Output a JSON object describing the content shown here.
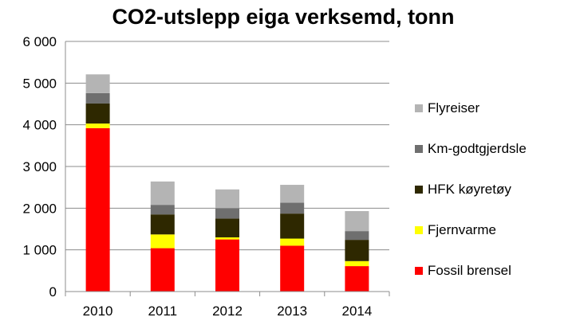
{
  "chart_data": {
    "type": "bar",
    "stacked": true,
    "title": "CO2-utslepp eiga verksemd, tonn",
    "xlabel": "",
    "ylabel": "",
    "categories": [
      "2010",
      "2011",
      "2012",
      "2013",
      "2014"
    ],
    "ylim": [
      0,
      6000
    ],
    "yticks": [
      0,
      1000,
      2000,
      3000,
      4000,
      5000,
      6000
    ],
    "ytick_labels": [
      "0",
      "1 000",
      "2 000",
      "3 000",
      "4 000",
      "5 000",
      "6 000"
    ],
    "grid": true,
    "legend_position": "right",
    "series": [
      {
        "name": "Fossil brensel",
        "color": "#ff0000",
        "values": [
          3920,
          1040,
          1250,
          1100,
          610
        ]
      },
      {
        "name": "Fjernvarme",
        "color": "#ffff00",
        "values": [
          110,
          330,
          50,
          170,
          120
        ]
      },
      {
        "name": "HFK køyretøy",
        "color": "#2e2800",
        "values": [
          480,
          480,
          450,
          600,
          510
        ]
      },
      {
        "name": "Km-godtgjerdsle",
        "color": "#6f6f6f",
        "values": [
          250,
          230,
          250,
          260,
          210
        ]
      },
      {
        "name": "Flyreiser",
        "color": "#b4b4b4",
        "values": [
          450,
          560,
          450,
          430,
          480
        ]
      }
    ]
  }
}
